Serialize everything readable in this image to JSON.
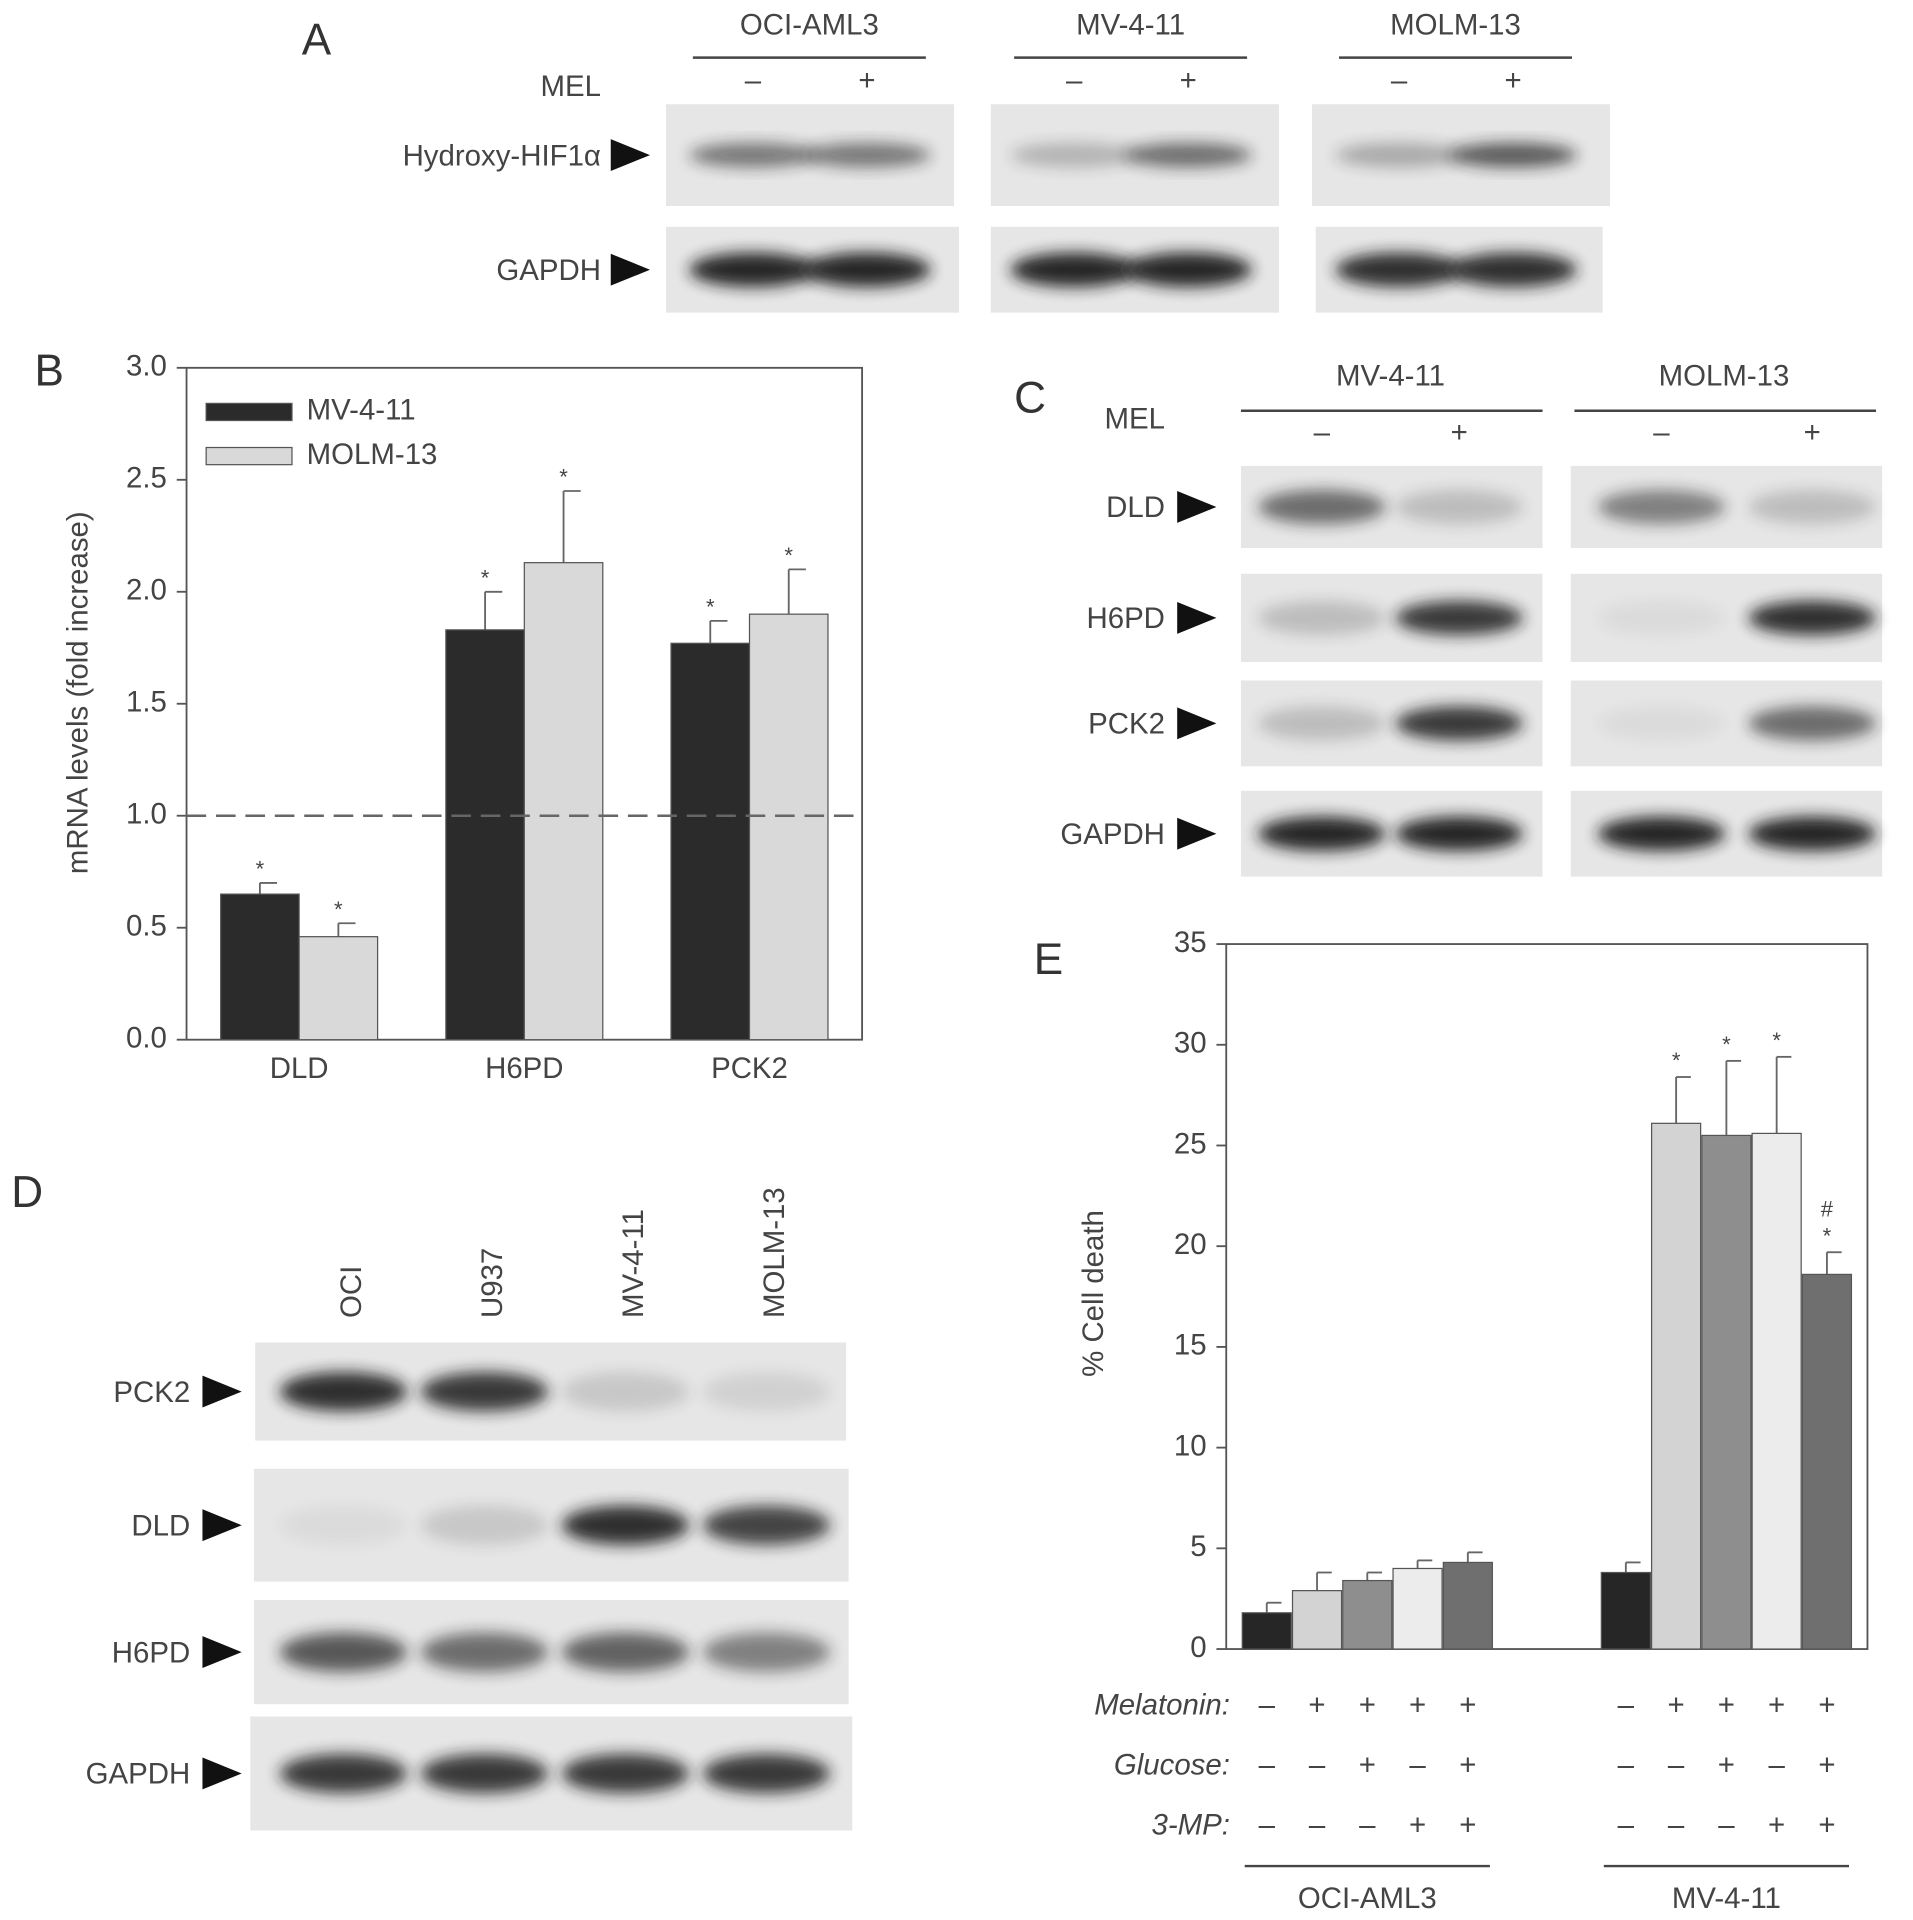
{
  "panel_A": {
    "letter": "A",
    "groups": [
      "OCI-AML3",
      "MV-4-11",
      "MOLM-13"
    ],
    "treatment": "MEL",
    "signs": [
      "–",
      "+"
    ],
    "rows": [
      "Hydroxy-HIF1α",
      "GAPDH"
    ]
  },
  "panel_C": {
    "letter": "C",
    "groups": [
      "MV-4-11",
      "MOLM-13"
    ],
    "treatment": "MEL",
    "signs": [
      "–",
      "+"
    ],
    "rows": [
      "DLD",
      "H6PD",
      "PCK2",
      "GAPDH"
    ]
  },
  "panel_D": {
    "letter": "D",
    "lanes": [
      "OCI",
      "U937",
      "MV-4-11",
      "MOLM-13"
    ],
    "rows": [
      "PCK2",
      "DLD",
      "H6PD",
      "GAPDH"
    ]
  },
  "chart_data": [
    {
      "type": "bar",
      "panel": "B",
      "ylabel": "mRNA levels (fold increase)",
      "categories": [
        "DLD",
        "H6PD",
        "PCK2"
      ],
      "series": [
        {
          "name": "MV-4-11",
          "color": "#2b2b2b",
          "values": [
            0.65,
            1.83,
            1.77
          ],
          "errors": [
            0.05,
            0.17,
            0.1
          ],
          "annotations": [
            "*",
            "*",
            "*"
          ]
        },
        {
          "name": "MOLM-13",
          "color": "#d9d9d9",
          "values": [
            0.46,
            2.13,
            1.9
          ],
          "errors": [
            0.06,
            0.32,
            0.2
          ],
          "annotations": [
            "*",
            "*",
            "*"
          ]
        }
      ],
      "ylim": [
        0,
        3
      ],
      "yticks": [
        {
          "value": 0,
          "label": "0.0"
        },
        0.5,
        {
          "value": 1,
          "label": "1.0"
        },
        1.5,
        {
          "value": 2,
          "label": "2.0"
        },
        2.5,
        {
          "value": 3,
          "label": "3.0"
        }
      ],
      "reference_line": 1,
      "legend": "upper left"
    },
    {
      "type": "bar",
      "panel": "E",
      "ylabel": "% Cell death",
      "categories": [
        "OCI-AML3",
        "MV-4-11"
      ],
      "series": [
        {
          "color": "#262626",
          "values": [
            1.8,
            3.8
          ],
          "errors": [
            0.5,
            0.5
          ],
          "annotations": [
            [],
            []
          ]
        },
        {
          "color": "#d3d3d3",
          "values": [
            2.9,
            26.1
          ],
          "errors": [
            0.9,
            2.3
          ],
          "annotations": [
            [],
            [
              "*"
            ]
          ]
        },
        {
          "color": "#8e8e8e",
          "values": [
            3.4,
            25.5
          ],
          "errors": [
            0.4,
            3.7
          ],
          "annotations": [
            [],
            [
              "*"
            ]
          ]
        },
        {
          "color": "#ececec",
          "values": [
            4.0,
            25.6
          ],
          "errors": [
            0.4,
            3.8
          ],
          "annotations": [
            [],
            [
              "*"
            ]
          ]
        },
        {
          "color": "#6f6f6f",
          "values": [
            4.3,
            18.6
          ],
          "errors": [
            0.5,
            1.1
          ],
          "annotations": [
            [],
            [
              "#",
              "*"
            ]
          ]
        }
      ],
      "conditions": [
        {
          "label": "Melatonin:",
          "signs": [
            "–",
            "+",
            "+",
            "+",
            "+"
          ]
        },
        {
          "label": "Glucose:",
          "signs": [
            "–",
            "–",
            "+",
            "–",
            "+"
          ]
        },
        {
          "label": "3-MP:",
          "signs": [
            "–",
            "–",
            "–",
            "+",
            "+"
          ]
        }
      ],
      "ylim": [
        0,
        35
      ],
      "yticks": [
        0,
        5,
        10,
        15,
        20,
        25,
        30,
        35
      ]
    }
  ]
}
